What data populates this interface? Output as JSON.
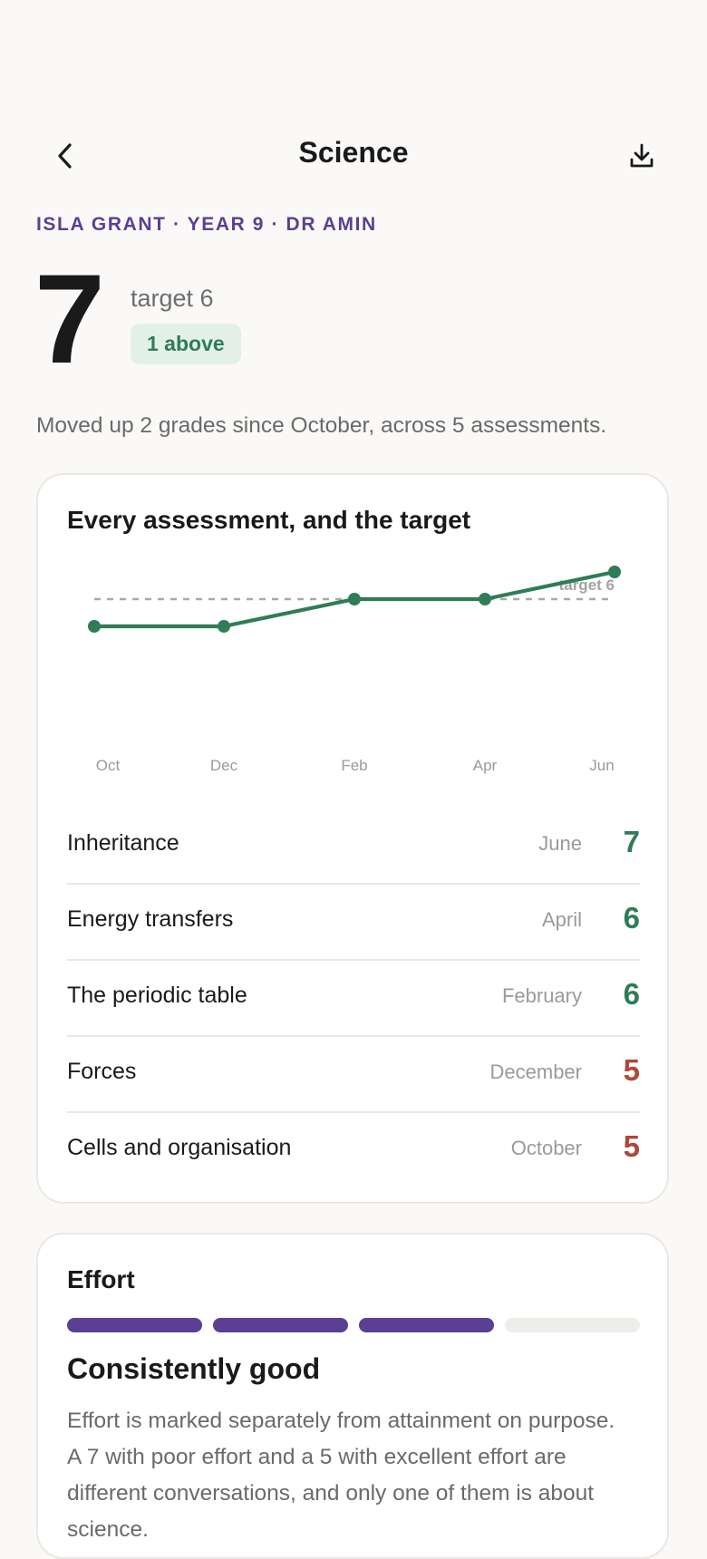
{
  "header": {
    "title": "Science",
    "back_icon": "chevron-left-icon",
    "download_icon": "download-icon"
  },
  "meta_line": "ISLA GRANT · YEAR 9 · DR AMIN",
  "grade": {
    "current": "7",
    "target_text": "target 6",
    "badge": "1 above"
  },
  "summary": "Moved up 2 grades since October, across 5 assessments.",
  "assessments_card": {
    "title": "Every assessment, and the target"
  },
  "chart_data": {
    "type": "line",
    "title": "Every assessment, and the target",
    "categories": [
      "Oct",
      "Dec",
      "Feb",
      "Apr",
      "Jun"
    ],
    "series": [
      {
        "values": [
          5,
          5,
          6,
          6,
          7
        ],
        "color": "#2e7d57"
      }
    ],
    "reference_line": {
      "label": "target 6",
      "value": 6,
      "style": "dashed",
      "color": "#a9a9a9"
    },
    "grid": false,
    "legend": "none"
  },
  "assessments": [
    {
      "name": "Inheritance",
      "month": "June",
      "grade": "7",
      "status": "above"
    },
    {
      "name": "Energy transfers",
      "month": "April",
      "grade": "6",
      "status": "met"
    },
    {
      "name": "The periodic table",
      "month": "February",
      "grade": "6",
      "status": "met"
    },
    {
      "name": "Forces",
      "month": "December",
      "grade": "5",
      "status": "below"
    },
    {
      "name": "Cells and organisation",
      "month": "October",
      "grade": "5",
      "status": "below"
    }
  ],
  "colors": {
    "accent_purple": "#5b3f94",
    "good_green": "#2e7d57",
    "below_red": "#b0473a",
    "badge_bg": "#e3f0e8"
  },
  "effort": {
    "title": "Effort",
    "level": 3,
    "max": 4,
    "label": "Consistently good",
    "body": "Effort is marked separately from attainment on purpose. A 7 with poor effort and a 5 with excellent effort are different conversations, and only one of them is about science."
  }
}
